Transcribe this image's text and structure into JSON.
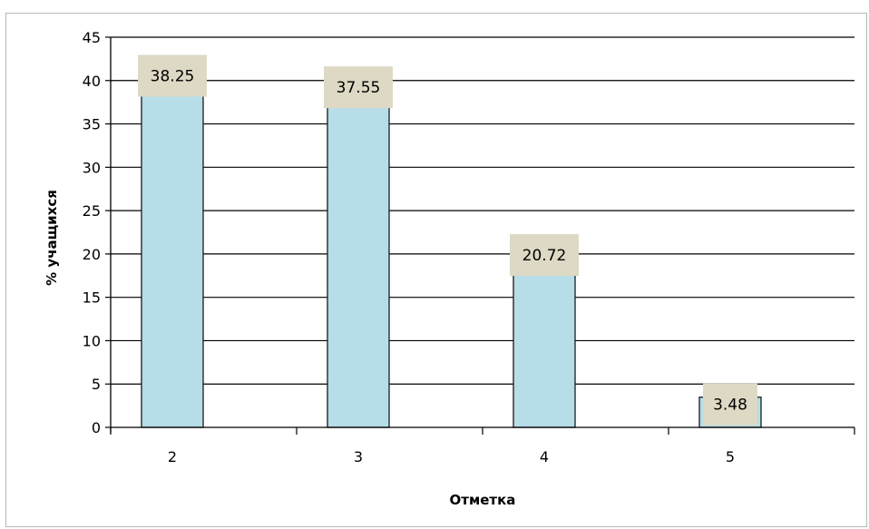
{
  "chart_data": {
    "type": "bar",
    "categories": [
      "2",
      "3",
      "4",
      "5"
    ],
    "values": [
      38.25,
      37.55,
      20.72,
      3.48
    ],
    "data_labels": [
      "38.25",
      "37.55",
      "20.72",
      "3.48"
    ],
    "title": "",
    "xlabel": "Отметка",
    "ylabel": "% учащихся",
    "ylim": [
      0,
      45
    ],
    "yticks": [
      0,
      5,
      10,
      15,
      20,
      25,
      30,
      35,
      40,
      45
    ],
    "ytick_labels": [
      "0",
      "5",
      "10",
      "15",
      "20",
      "25",
      "30",
      "35",
      "40",
      "45"
    ],
    "grid": "horizontal",
    "legend": "none",
    "colors": {
      "bar_fill": "#b7dde8",
      "bar_stroke": "#1a1a1a",
      "label_bg": "#ddd9c4",
      "grid": "#000000"
    }
  }
}
